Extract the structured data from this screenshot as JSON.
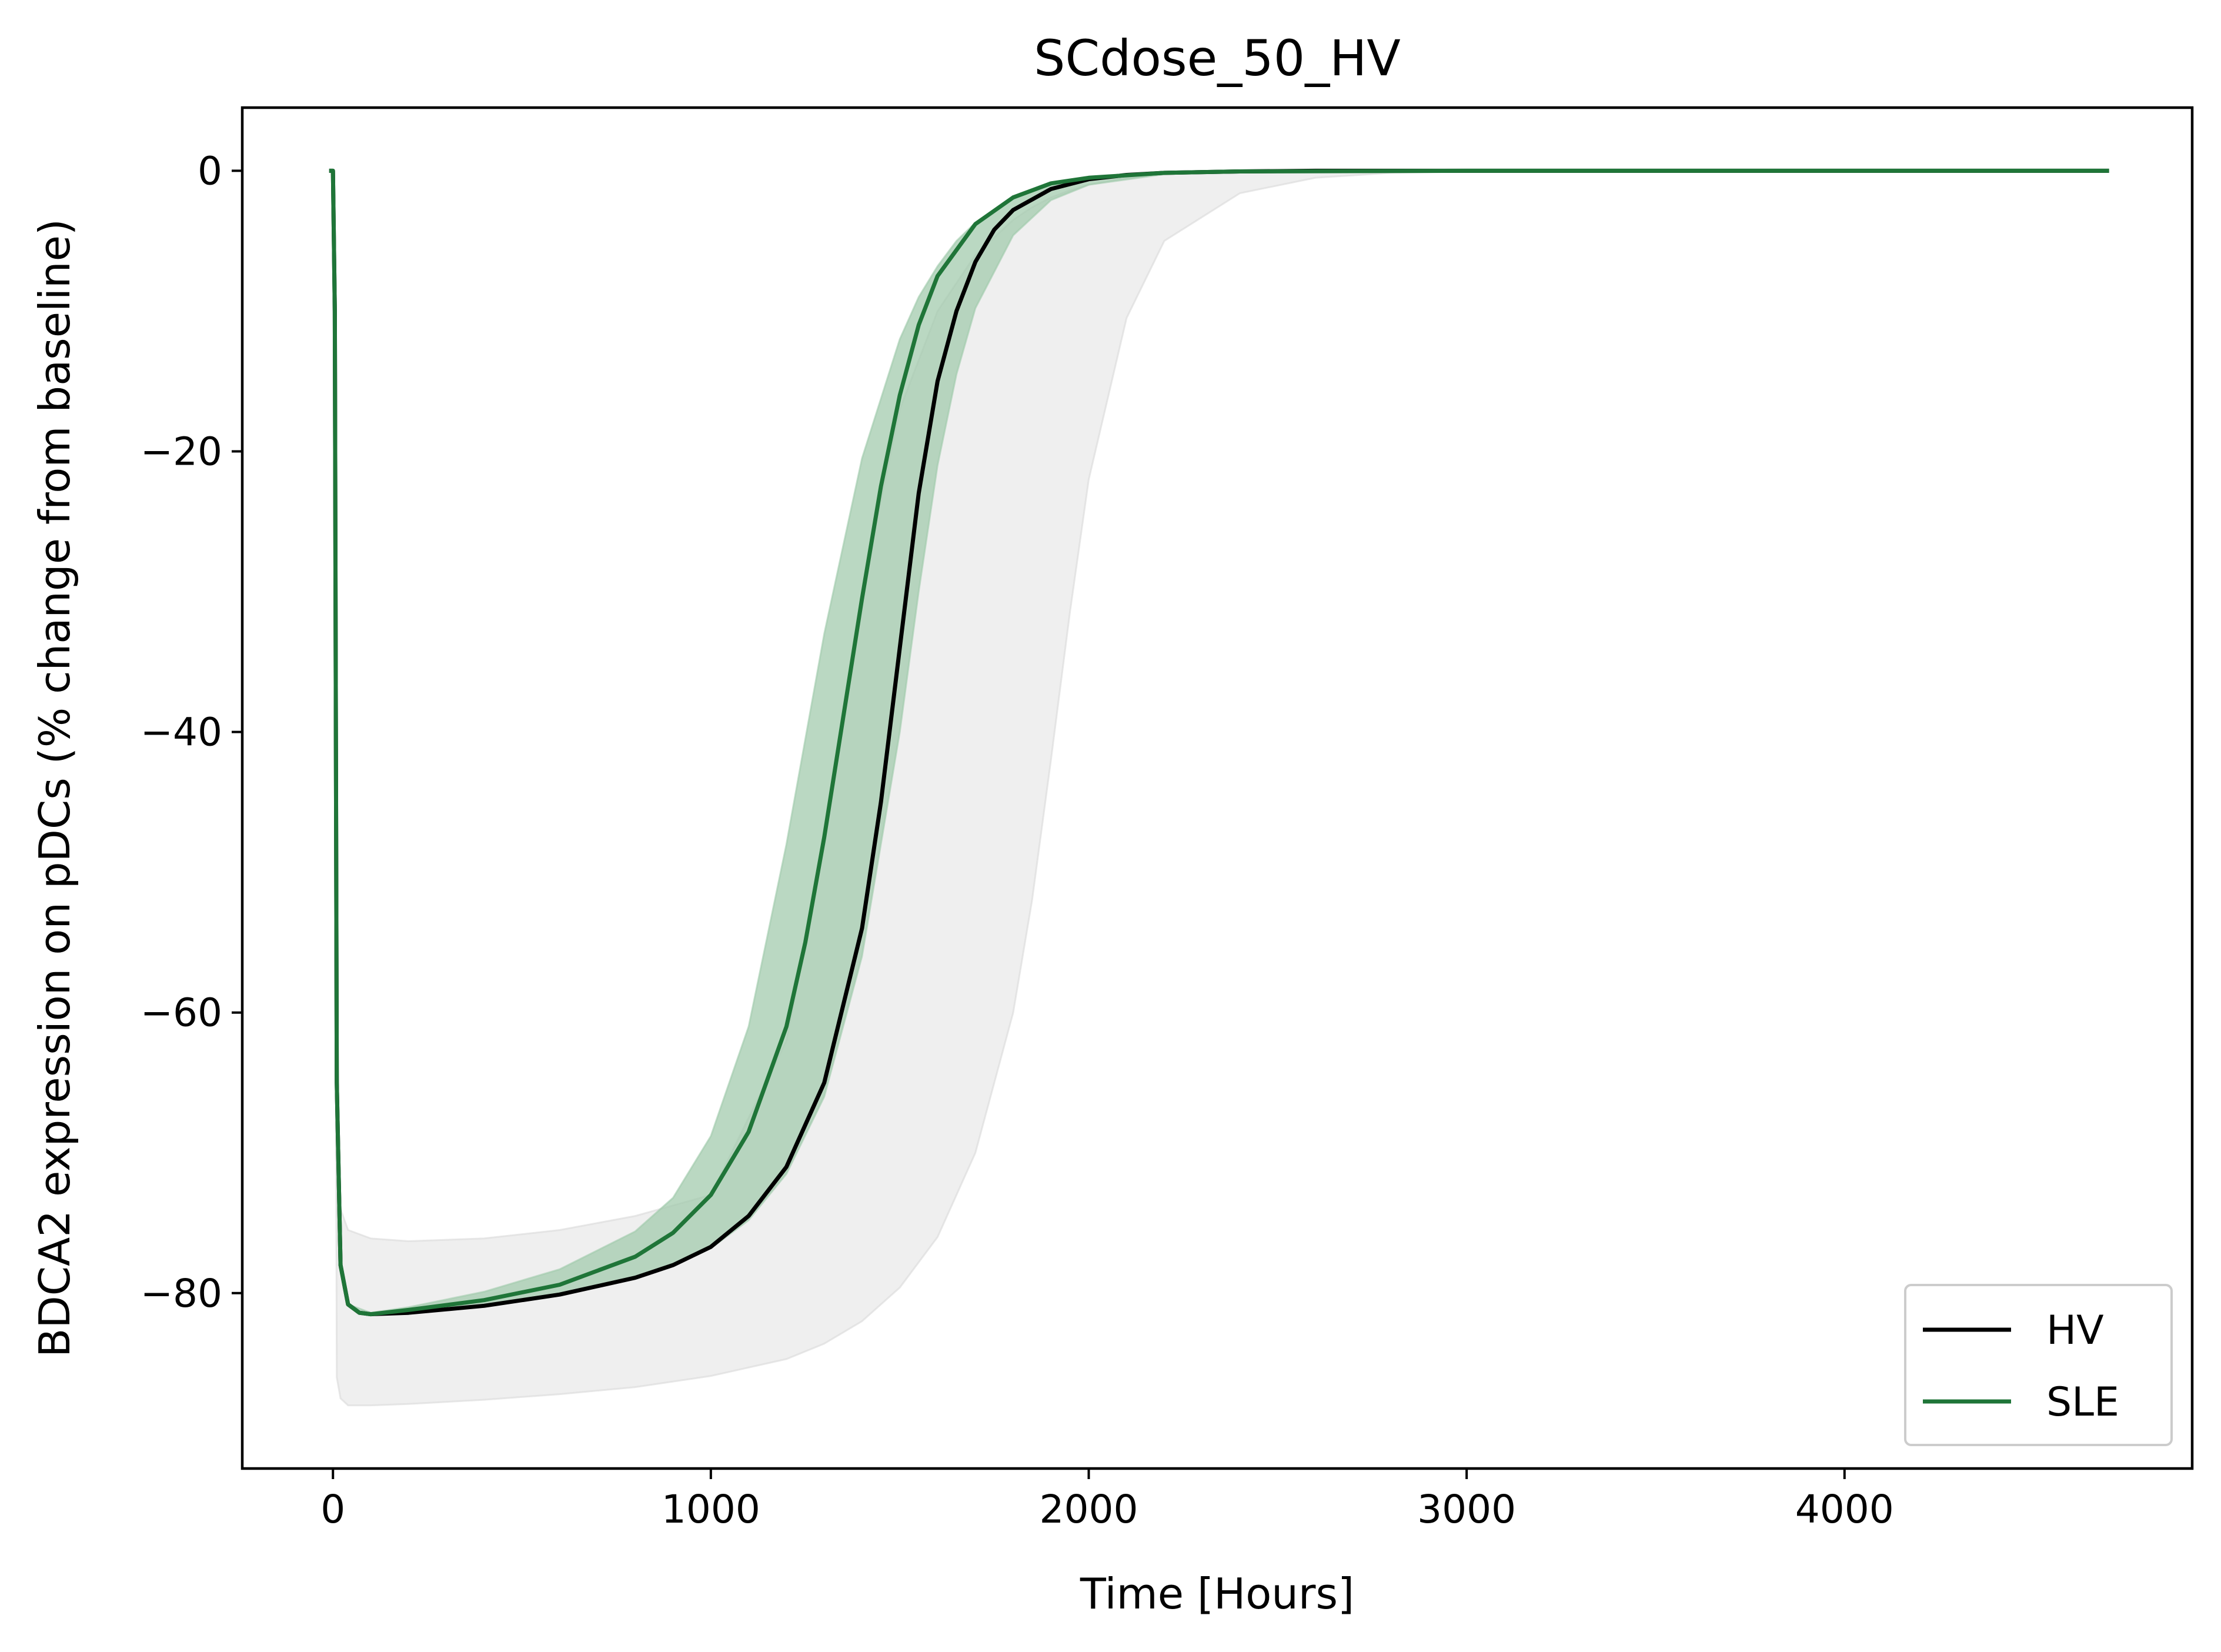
{
  "chart_data": {
    "type": "line",
    "title": "SCdose_50_HV",
    "xlabel": "Time [Hours]",
    "ylabel": "BDCA2 expression on pDCs (% change from baseline)",
    "xlim": [
      -240,
      4920
    ],
    "ylim": [
      -92.5,
      4.5
    ],
    "xticks": [
      0,
      1000,
      2000,
      3000,
      4000
    ],
    "xtick_labels": [
      "0",
      "1000",
      "2000",
      "3000",
      "4000"
    ],
    "yticks": [
      0,
      -20,
      -40,
      -60,
      -80
    ],
    "ytick_labels": [
      "0",
      "−20",
      "−40",
      "−60",
      "−80"
    ],
    "grid": false,
    "legend_position": "lower-right",
    "colors": {
      "HV": "#000000",
      "SLE": "#1f7538",
      "HV_band": "#d9d9d9",
      "SLE_band": "#9fc9aa"
    },
    "series": [
      {
        "name": "HV",
        "x": [
          -10,
          0,
          5,
          10,
          20,
          40,
          70,
          100,
          200,
          400,
          600,
          800,
          900,
          1000,
          1100,
          1200,
          1300,
          1400,
          1450,
          1500,
          1550,
          1600,
          1650,
          1700,
          1750,
          1800,
          1900,
          2000,
          2100,
          2200,
          2400,
          2600,
          3000,
          3500,
          4000,
          4700
        ],
        "y": [
          0,
          0,
          -10,
          -65,
          -78,
          -80.8,
          -81.4,
          -81.5,
          -81.4,
          -80.9,
          -80.1,
          -78.9,
          -78.0,
          -76.7,
          -74.5,
          -71.0,
          -65.0,
          -54.0,
          -45.0,
          -34.0,
          -23.0,
          -15.0,
          -10.0,
          -6.5,
          -4.2,
          -2.8,
          -1.3,
          -0.6,
          -0.3,
          -0.15,
          -0.05,
          0,
          0,
          0,
          0,
          0
        ]
      },
      {
        "name": "SLE",
        "x": [
          -10,
          0,
          5,
          10,
          20,
          40,
          70,
          100,
          200,
          400,
          600,
          800,
          900,
          1000,
          1100,
          1200,
          1250,
          1300,
          1350,
          1400,
          1450,
          1500,
          1550,
          1600,
          1700,
          1800,
          1900,
          2000,
          2200,
          2400,
          3000,
          3500,
          4000,
          4700
        ],
        "y": [
          0,
          0,
          -10,
          -65,
          -78,
          -80.8,
          -81.4,
          -81.5,
          -81.2,
          -80.5,
          -79.4,
          -77.4,
          -75.7,
          -73.0,
          -68.5,
          -61.0,
          -55.0,
          -47.5,
          -39.0,
          -30.5,
          -22.5,
          -16.0,
          -11.0,
          -7.5,
          -3.8,
          -1.9,
          -0.9,
          -0.5,
          -0.15,
          -0.05,
          0,
          0,
          0,
          0
        ]
      }
    ],
    "bands": [
      {
        "for": "HV",
        "x": [
          0,
          5,
          10,
          20,
          40,
          100,
          200,
          400,
          600,
          800,
          1000,
          1200,
          1300,
          1400,
          1500,
          1600,
          1700,
          1800,
          1850,
          1900,
          1950,
          2000,
          2100,
          2200,
          2400,
          2600,
          2800,
          3000,
          3500,
          4000,
          4700
        ],
        "lower": [
          0,
          -40,
          -86,
          -87.5,
          -88.0,
          -88.0,
          -87.9,
          -87.6,
          -87.2,
          -86.7,
          -85.9,
          -84.7,
          -83.6,
          -82.0,
          -79.6,
          -76.0,
          -70.0,
          -60.0,
          -52.0,
          -42.0,
          -31.5,
          -22.0,
          -10.5,
          -5.0,
          -1.6,
          -0.5,
          -0.15,
          -0.05,
          0,
          0,
          0
        ],
        "upper": [
          0,
          -10,
          -60,
          -74.0,
          -75.5,
          -76.1,
          -76.3,
          -76.1,
          -75.5,
          -74.5,
          -73.0,
          -62.0,
          -48.0,
          -30.0,
          -17.0,
          -10.0,
          -6.0,
          -3.5,
          -2.6,
          -1.9,
          -1.4,
          -1.0,
          -0.5,
          -0.2,
          -0.05,
          0,
          0,
          0,
          0,
          0,
          0
        ]
      },
      {
        "for": "SLE",
        "x": [
          0,
          5,
          10,
          20,
          40,
          100,
          200,
          400,
          600,
          800,
          900,
          1000,
          1100,
          1200,
          1300,
          1400,
          1500,
          1550,
          1600,
          1650,
          1700,
          1800,
          1900,
          2000,
          2200,
          2400,
          3000,
          4700
        ],
        "lower": [
          0,
          -10,
          -65,
          -78,
          -80.8,
          -81.5,
          -81.4,
          -80.9,
          -80.1,
          -78.9,
          -78.0,
          -76.8,
          -74.8,
          -71.5,
          -66.0,
          -56.0,
          -40.0,
          -30.0,
          -21.0,
          -14.5,
          -9.8,
          -4.6,
          -2.1,
          -1.0,
          -0.25,
          -0.06,
          0,
          0
        ],
        "upper": [
          0,
          -10,
          -65,
          -78,
          -80.8,
          -81.4,
          -81.0,
          -79.9,
          -78.3,
          -75.6,
          -73.2,
          -68.8,
          -61.0,
          -48.0,
          -33.0,
          -20.5,
          -12.0,
          -9.0,
          -6.8,
          -5.0,
          -3.7,
          -1.9,
          -0.9,
          -0.45,
          -0.1,
          -0.03,
          0,
          0
        ]
      }
    ],
    "legend": [
      {
        "label": "HV",
        "series": "HV"
      },
      {
        "label": "SLE",
        "series": "SLE"
      }
    ]
  }
}
